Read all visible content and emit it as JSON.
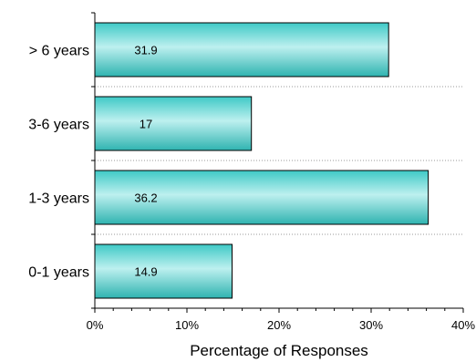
{
  "chart_data": {
    "type": "bar",
    "orientation": "horizontal",
    "categories": [
      "> 6 years",
      "3-6 years",
      "1-3 years",
      "0-1 years"
    ],
    "values": [
      31.9,
      17,
      36.2,
      14.9
    ],
    "data_labels": [
      "31.9",
      "17",
      "36.2",
      "14.9"
    ],
    "xlabel": "Percentage of Responses",
    "xlim": [
      0,
      40
    ],
    "x_ticks": [
      0,
      10,
      20,
      30,
      40
    ],
    "x_tick_labels": [
      "0%",
      "10%",
      "20%",
      "30%",
      "40%"
    ],
    "grid": "dotted category separators",
    "legend": "none",
    "colors": {
      "bar_edge": "#000000",
      "bar_top": "#3ec9c6",
      "bar_mid": "#bdf0ef",
      "bar_bottom": "#2fb3b0",
      "separator": "#9a9a9a"
    }
  }
}
